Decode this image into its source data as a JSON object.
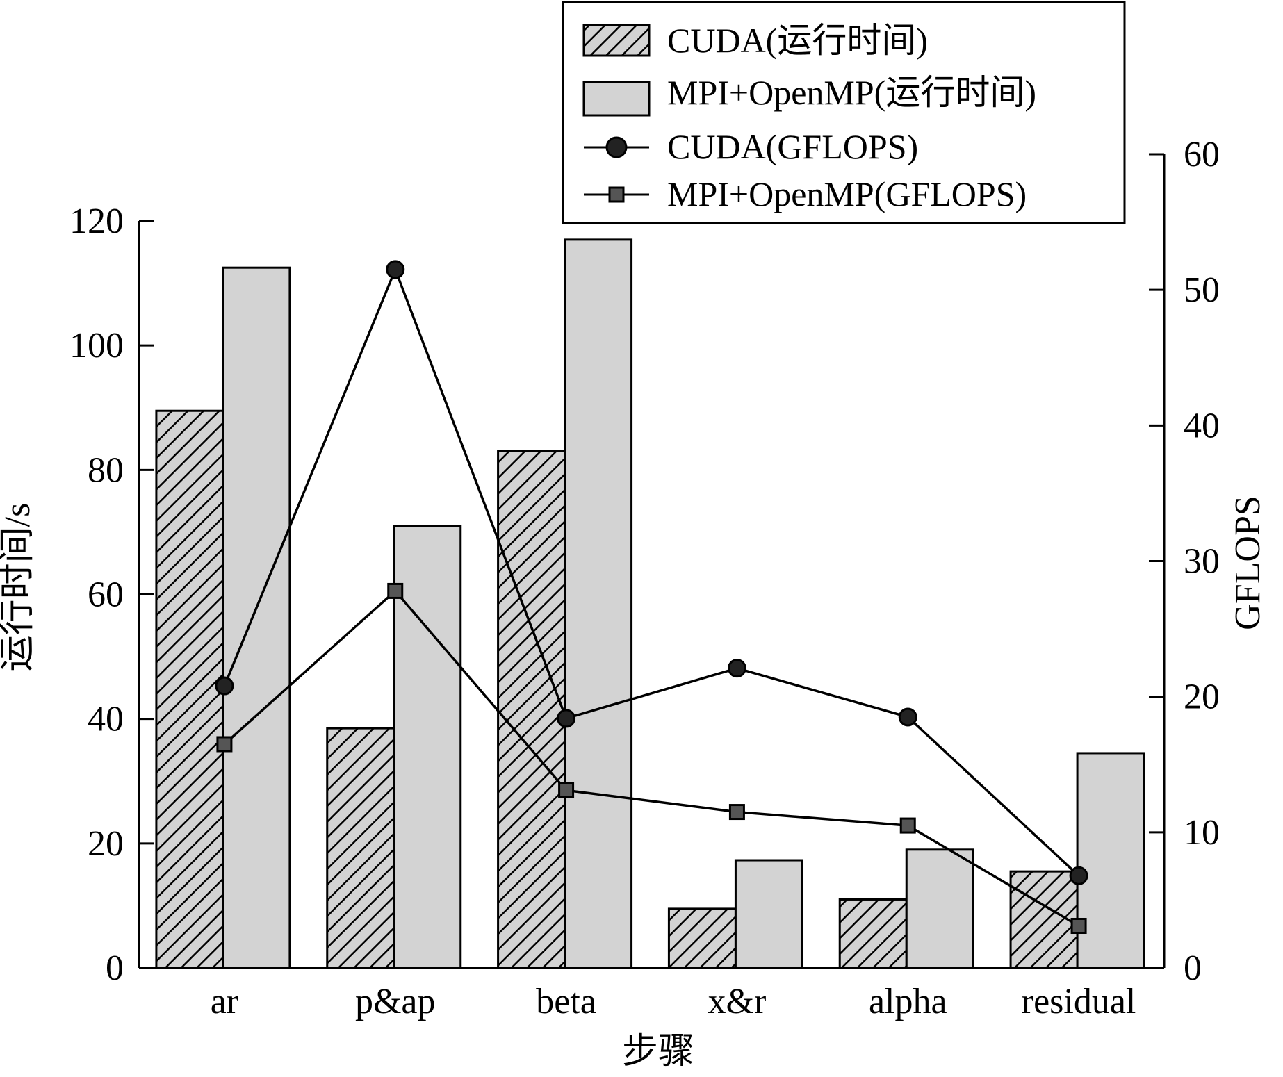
{
  "chart_data": {
    "type": "bar",
    "categories": [
      "ar",
      "p&ap",
      "beta",
      "x&r",
      "alpha",
      "residual"
    ],
    "xlabel": "步骤",
    "ylabel": "运行时间/s",
    "y2label": "GFLOPS",
    "ylim": [
      0,
      120
    ],
    "y2lim": [
      0,
      60
    ],
    "yticks": [
      "0",
      "20",
      "40",
      "60",
      "80",
      "100",
      "120"
    ],
    "y2ticks": [
      "0",
      "10",
      "20",
      "30",
      "40",
      "50",
      "60"
    ],
    "grid": false,
    "legend_position": "top-right",
    "series": [
      {
        "name": "CUDA(运行时间)",
        "kind": "bar",
        "axis": "left",
        "style": "hatched",
        "values": [
          89.5,
          38.5,
          83,
          9.5,
          11,
          15.5
        ]
      },
      {
        "name": "MPI+OpenMP(运行时间)",
        "kind": "bar",
        "axis": "left",
        "style": "solid-gray",
        "values": [
          112.5,
          71,
          117,
          17.3,
          19,
          34.5
        ]
      },
      {
        "name": "CUDA(GFLOPS)",
        "kind": "line",
        "axis": "right",
        "marker": "circle",
        "values": [
          20.8,
          51.5,
          18.4,
          22.1,
          18.5,
          6.8
        ]
      },
      {
        "name": "MPI+OpenMP(GFLOPS)",
        "kind": "line",
        "axis": "right",
        "marker": "square",
        "values": [
          16.5,
          27.8,
          13.1,
          11.5,
          10.5,
          3.1
        ]
      }
    ],
    "colors": {
      "bar_fill": "#d3d3d3",
      "hatch_bg": "#d3d3d3",
      "line": "#000000",
      "circle_marker": "#222222",
      "square_marker": "#555555"
    }
  }
}
